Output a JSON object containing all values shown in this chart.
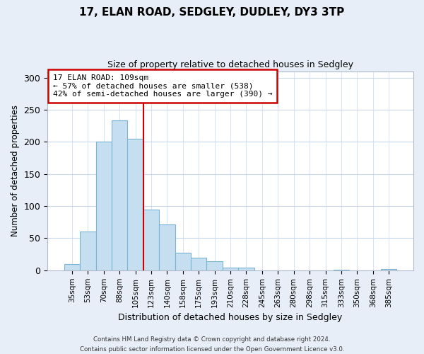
{
  "title_line1": "17, ELAN ROAD, SEDGLEY, DUDLEY, DY3 3TP",
  "title_line2": "Size of property relative to detached houses in Sedgley",
  "xlabel": "Distribution of detached houses by size in Sedgley",
  "ylabel": "Number of detached properties",
  "bar_labels": [
    "35sqm",
    "53sqm",
    "70sqm",
    "88sqm",
    "105sqm",
    "123sqm",
    "140sqm",
    "158sqm",
    "175sqm",
    "193sqm",
    "210sqm",
    "228sqm",
    "245sqm",
    "263sqm",
    "280sqm",
    "298sqm",
    "315sqm",
    "333sqm",
    "350sqm",
    "368sqm",
    "385sqm"
  ],
  "bar_values": [
    10,
    60,
    200,
    233,
    205,
    95,
    71,
    27,
    20,
    14,
    4,
    4,
    0,
    0,
    0,
    0,
    0,
    1,
    0,
    0,
    2
  ],
  "bar_color": "#c6dff0",
  "bar_edge_color": "#7ab4d4",
  "vline_color": "#cc0000",
  "annotation_title": "17 ELAN ROAD: 109sqm",
  "annotation_line1": "← 57% of detached houses are smaller (538)",
  "annotation_line2": "42% of semi-detached houses are larger (390) →",
  "annotation_box_color": "#ffffff",
  "annotation_box_edge": "#cc0000",
  "ylim": [
    0,
    310
  ],
  "yticks": [
    0,
    50,
    100,
    150,
    200,
    250,
    300
  ],
  "footer_line1": "Contains HM Land Registry data © Crown copyright and database right 2024.",
  "footer_line2": "Contains public sector information licensed under the Open Government Licence v3.0.",
  "bg_color": "#e8eef8",
  "plot_bg_color": "#ffffff",
  "grid_color": "#c8d8ee"
}
